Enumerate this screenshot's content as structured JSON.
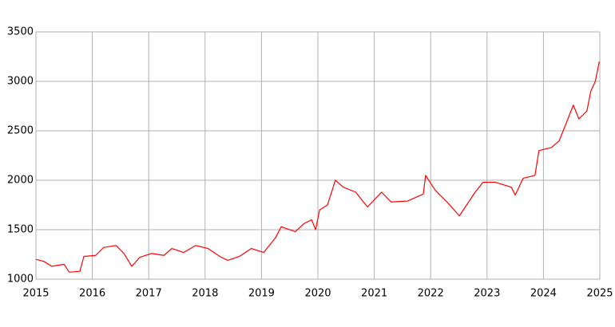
{
  "chart_data": {
    "type": "line",
    "x": [
      2015.0,
      2015.14,
      2015.28,
      2015.5,
      2015.59,
      2015.78,
      2015.85,
      2016.06,
      2016.2,
      2016.42,
      2016.56,
      2016.7,
      2016.84,
      2017.05,
      2017.27,
      2017.41,
      2017.62,
      2017.83,
      2018.05,
      2018.26,
      2018.4,
      2018.61,
      2018.82,
      2019.04,
      2019.25,
      2019.35,
      2019.6,
      2019.75,
      2019.89,
      2019.96,
      2020.03,
      2020.17,
      2020.31,
      2020.45,
      2020.67,
      2020.88,
      2021.13,
      2021.3,
      2021.59,
      2021.87,
      2021.91,
      2022.08,
      2022.29,
      2022.51,
      2022.65,
      2022.79,
      2022.93,
      2023.14,
      2023.43,
      2023.5,
      2023.64,
      2023.85,
      2023.92,
      2024.14,
      2024.28,
      2024.42,
      2024.53,
      2024.63,
      2024.77,
      2024.84,
      2024.92,
      2024.99
    ],
    "series": [
      {
        "color": "#ff0000",
        "values": [
          1200,
          1180,
          1130,
          1150,
          1070,
          1080,
          1230,
          1240,
          1320,
          1340,
          1260,
          1130,
          1220,
          1260,
          1240,
          1310,
          1270,
          1340,
          1310,
          1230,
          1190,
          1230,
          1310,
          1270,
          1420,
          1530,
          1480,
          1560,
          1600,
          1500,
          1700,
          1750,
          2000,
          1930,
          1880,
          1730,
          1880,
          1780,
          1790,
          1860,
          2050,
          1900,
          1780,
          1640,
          1760,
          1880,
          1980,
          1980,
          1930,
          1850,
          2020,
          2050,
          2300,
          2330,
          2400,
          2600,
          2760,
          2620,
          2700,
          2900,
          3000,
          3200
        ]
      }
    ],
    "xlim": [
      2015,
      2025
    ],
    "xticks": [
      2015,
      2016,
      2017,
      2018,
      2019,
      2020,
      2021,
      2022,
      2023,
      2024,
      2025
    ],
    "ylim": [
      1000,
      3500
    ],
    "yticks": [
      1000,
      1500,
      2000,
      2500,
      3000,
      3500
    ],
    "grid": true
  }
}
